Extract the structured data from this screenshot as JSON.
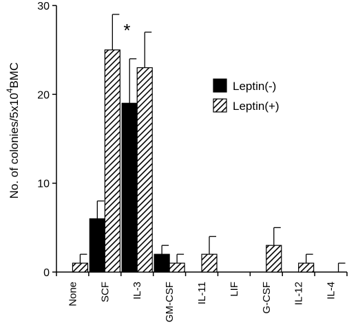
{
  "chart_data": {
    "type": "bar",
    "categories": [
      "None",
      "SCF",
      "IL-3",
      "GM-CSF",
      "IL-11",
      "LIF",
      "G-CSF",
      "IL-12",
      "IL-4"
    ],
    "series": [
      {
        "name": "Leptin(-)",
        "color": "#000000",
        "pattern": "solid",
        "values": [
          0,
          6,
          19,
          2,
          0,
          0,
          0,
          0,
          0
        ],
        "errors": [
          0,
          2,
          5,
          1,
          0,
          0,
          0,
          0,
          0
        ]
      },
      {
        "name": "Leptin(+)",
        "color": "#000000",
        "pattern": "diagonal-hatch",
        "values": [
          1,
          25,
          23,
          1,
          2,
          0,
          3,
          1,
          0
        ],
        "errors": [
          1,
          4,
          4,
          1,
          2,
          0,
          2,
          1,
          1
        ]
      }
    ],
    "yticks": [
      0,
      10,
      20,
      30
    ],
    "ylim": [
      0,
      30
    ],
    "ylabel": "No. of colonies/5x10",
    "ylabel_superscript": "4",
    "ylabel_suffix": "BMC",
    "xlabel": "",
    "title": "",
    "legend_position": "upper-right",
    "annotations": [
      {
        "text": "*",
        "category": "SCF",
        "series": "Leptin(+)"
      }
    ]
  }
}
